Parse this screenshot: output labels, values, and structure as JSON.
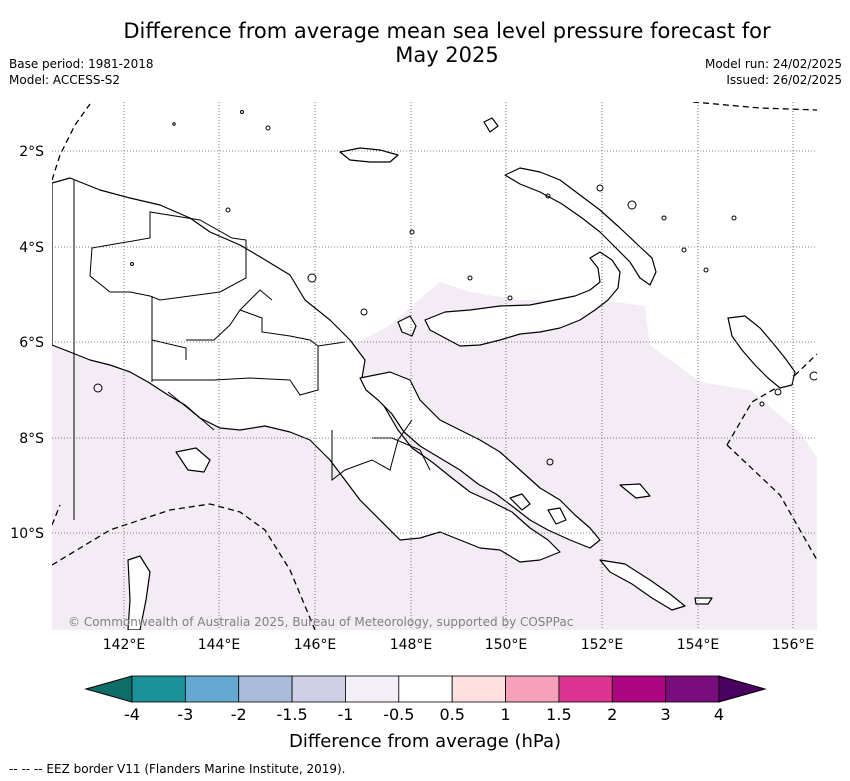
{
  "title": {
    "line1": "Difference from average mean sea level pressure forecast for",
    "line2": "May 2025"
  },
  "meta": {
    "base_period": "Base period: 1981-2018",
    "model": "Model: ACCESS-S2",
    "model_run": "Model run: 24/02/2025",
    "issued": "Issued: 26/02/2025"
  },
  "map": {
    "copyright": "© Commonwealth of Australia 2025, Bureau of Meteorology, supported by COSPPac",
    "lat_labels": [
      "2°S",
      "4°S",
      "6°S",
      "8°S",
      "10°S"
    ],
    "lon_labels": [
      "142°E",
      "144°E",
      "146°E",
      "148°E",
      "150°E",
      "152°E",
      "154°E",
      "156°E"
    ],
    "anomaly_fill_color": "#f4ecf5",
    "anomaly_fill_category": "-1 to -0.5 hPa",
    "land_outline_color": "#000000",
    "gridline_style": "dotted"
  },
  "colorbar": {
    "label": "Difference from average (hPa)",
    "tick_labels": [
      "-4",
      "-3",
      "-2",
      "-1.5",
      "-1",
      "-0.5",
      "0.5",
      "1",
      "1.5",
      "2",
      "3",
      "4"
    ],
    "colors": [
      "#0e6d66",
      "#1b9199",
      "#65a9d3",
      "#a9bbdb",
      "#cfd0e6",
      "#f4eef6",
      "#ffffff",
      "#ffe0e0",
      "#f6a0ba",
      "#dd3491",
      "#ad0580",
      "#780d7b",
      "#4a005e"
    ]
  },
  "footnote": "--  --  -- EEZ border V11 (Flanders Marine Institute, 2019)."
}
